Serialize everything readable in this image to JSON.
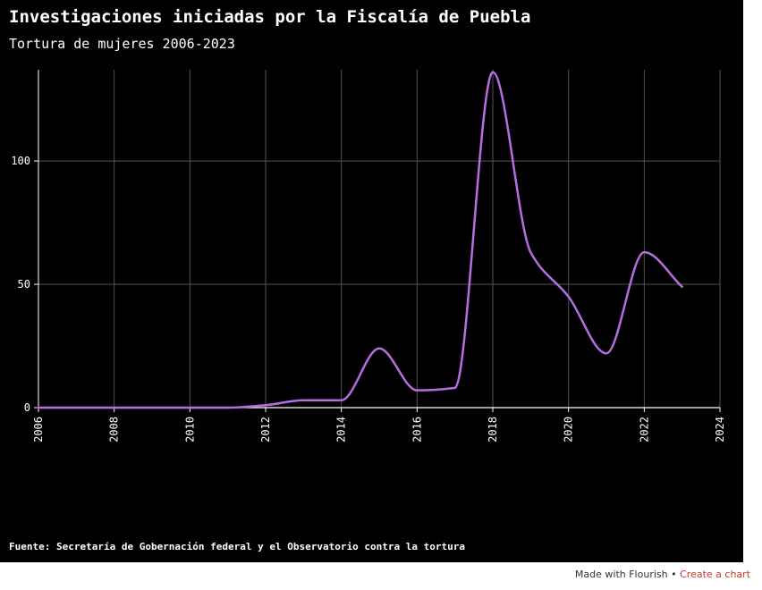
{
  "title": "Investigaciones iniciadas por la Fiscalía de Puebla",
  "subtitle": "Tortura de mujeres 2006-2023",
  "source": "Fuente: Secretaría de Gobernación federal y el Observatorio contra la tortura",
  "credit": {
    "made_with": "Made with Flourish",
    "separator": "•",
    "create_link": "Create a chart"
  },
  "colors": {
    "background": "#000000",
    "line": "#b56ee0",
    "grid": "#555555",
    "text": "#ffffff",
    "link": "#c0392b"
  },
  "chart_data": {
    "type": "line",
    "x": [
      2006,
      2007,
      2008,
      2009,
      2010,
      2011,
      2012,
      2013,
      2014,
      2015,
      2016,
      2017,
      2018,
      2019,
      2020,
      2021,
      2022,
      2023
    ],
    "series": [
      {
        "values": [
          0,
          0,
          0,
          0,
          0,
          0,
          1,
          3,
          3,
          24,
          7,
          8,
          136,
          63,
          45,
          22,
          63,
          49
        ]
      }
    ],
    "xlim": [
      2006,
      2024
    ],
    "ylim": [
      0,
      137
    ],
    "x_ticks": [
      "2006",
      "2008",
      "2010",
      "2012",
      "2014",
      "2016",
      "2018",
      "2020",
      "2022",
      "2024"
    ],
    "y_ticks": [
      "0",
      "50",
      "100"
    ],
    "xlabel": "",
    "ylabel": "",
    "grid": true,
    "curve": "smooth"
  }
}
